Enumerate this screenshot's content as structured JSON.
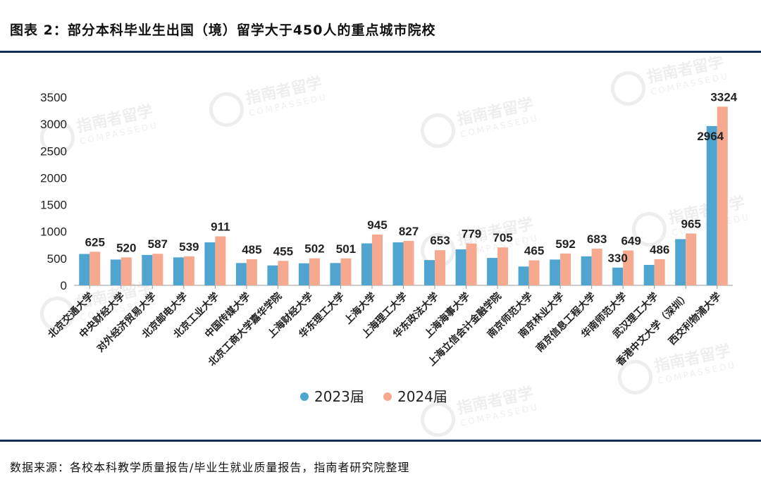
{
  "title": "图表 2：部分本科毕业生出国（境）留学大于450人的重点城市院校",
  "source": "数据来源：各校本科教学质量报告/毕业生就业质量报告，指南者研究院整理",
  "watermark": {
    "name": "指南者留学",
    "sub": "COMPASSEDU"
  },
  "colors": {
    "s2023": "#4fa5cf",
    "s2024": "#f6a98f",
    "rule": "#0d2f57",
    "axis": "#999999"
  },
  "chart_data": {
    "type": "bar",
    "categories": [
      "北京交通大学",
      "中央财经大学",
      "对外经济贸易大学",
      "北京邮电大学",
      "北京工业大学",
      "中国传媒大学",
      "北京工商大学嘉华学院",
      "上海财经大学",
      "华东理工大学",
      "上海大学",
      "上海理工大学",
      "华东政法大学",
      "上海海事大学",
      "上海立信会计金融学院",
      "南京师范大学",
      "南京林业大学",
      "南京信息工程大学",
      "华南师范大学",
      "武汉理工大学",
      "香港中文大学（深圳）",
      "西交利物浦大学"
    ],
    "series": [
      {
        "name": "2023届",
        "values": [
          584,
          480,
          565,
          520,
          800,
          415,
          370,
          410,
          415,
          780,
          800,
          470,
          670,
          510,
          350,
          480,
          540,
          330,
          380,
          860,
          2964
        ]
      },
      {
        "name": "2024届",
        "values": [
          625,
          520,
          587,
          539,
          911,
          485,
          455,
          502,
          501,
          945,
          827,
          653,
          779,
          705,
          465,
          592,
          683,
          649,
          486,
          965,
          3324
        ]
      }
    ],
    "data_labels": [
      "625",
      "520",
      "587",
      "539",
      "911",
      "485",
      "455",
      "502",
      "501",
      "945",
      "827",
      "653",
      "779",
      "705",
      "465",
      "592",
      "683",
      "330",
      "649",
      "486",
      "965",
      "2964",
      "3324"
    ],
    "ylim": [
      0,
      3500
    ],
    "yticks": [
      0,
      500,
      1000,
      1500,
      2000,
      2500,
      3000,
      3500
    ],
    "grid": false,
    "legend_position": "bottom"
  }
}
